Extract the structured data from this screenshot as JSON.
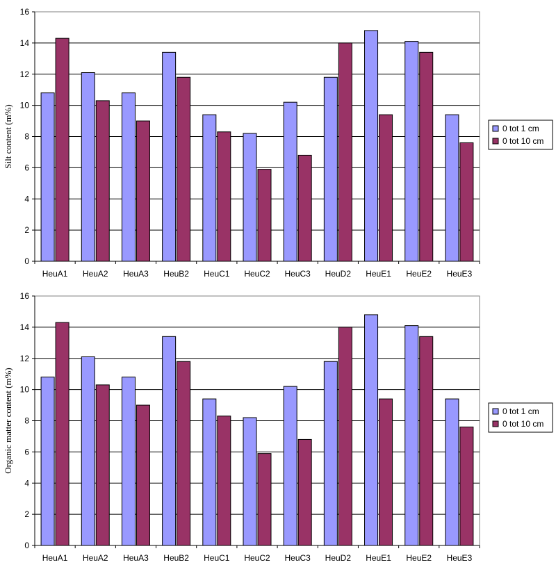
{
  "chart_data": [
    {
      "type": "bar",
      "ylabel": "Silt content (m%)",
      "xlabel": "",
      "title": "",
      "categories": [
        "HeuA1",
        "HeuA2",
        "HeuA3",
        "HeuB2",
        "HeuC1",
        "HeuC2",
        "HeuC3",
        "HeuD2",
        "HeuE1",
        "HeuE2",
        "HeuE3"
      ],
      "series": [
        {
          "name": "0 tot 1 cm",
          "color": "#9999ff",
          "values": [
            10.8,
            12.1,
            10.8,
            13.4,
            9.4,
            8.2,
            10.2,
            11.8,
            14.8,
            14.1,
            9.4
          ]
        },
        {
          "name": "0 tot 10 cm",
          "color": "#993366",
          "values": [
            14.3,
            10.3,
            9.0,
            11.8,
            8.3,
            5.9,
            6.8,
            14.0,
            9.4,
            13.4,
            7.6
          ]
        }
      ],
      "ylim": [
        0,
        16
      ],
      "yticks": [
        "0",
        "2",
        "4",
        "6",
        "8",
        "10",
        "12",
        "14",
        "16"
      ],
      "grid": true,
      "legend_position": "right"
    },
    {
      "type": "bar",
      "ylabel": "Organic matter content (m%)",
      "xlabel": "",
      "title": "",
      "categories": [
        "HeuA1",
        "HeuA2",
        "HeuA3",
        "HeuB2",
        "HeuC1",
        "HeuC2",
        "HeuC3",
        "HeuD2",
        "HeuE1",
        "HeuE2",
        "HeuE3"
      ],
      "series": [
        {
          "name": "0 tot 1 cm",
          "color": "#9999ff",
          "values": [
            10.8,
            12.1,
            10.8,
            13.4,
            9.4,
            8.2,
            10.2,
            11.8,
            14.8,
            14.1,
            9.4
          ]
        },
        {
          "name": "0 tot 10 cm",
          "color": "#993366",
          "values": [
            14.3,
            10.3,
            9.0,
            11.8,
            8.3,
            5.9,
            6.8,
            14.0,
            9.4,
            13.4,
            7.6
          ]
        }
      ],
      "ylim": [
        0,
        16
      ],
      "yticks": [
        "0",
        "2",
        "4",
        "6",
        "8",
        "10",
        "12",
        "14",
        "16"
      ],
      "grid": true,
      "legend_position": "right"
    }
  ]
}
